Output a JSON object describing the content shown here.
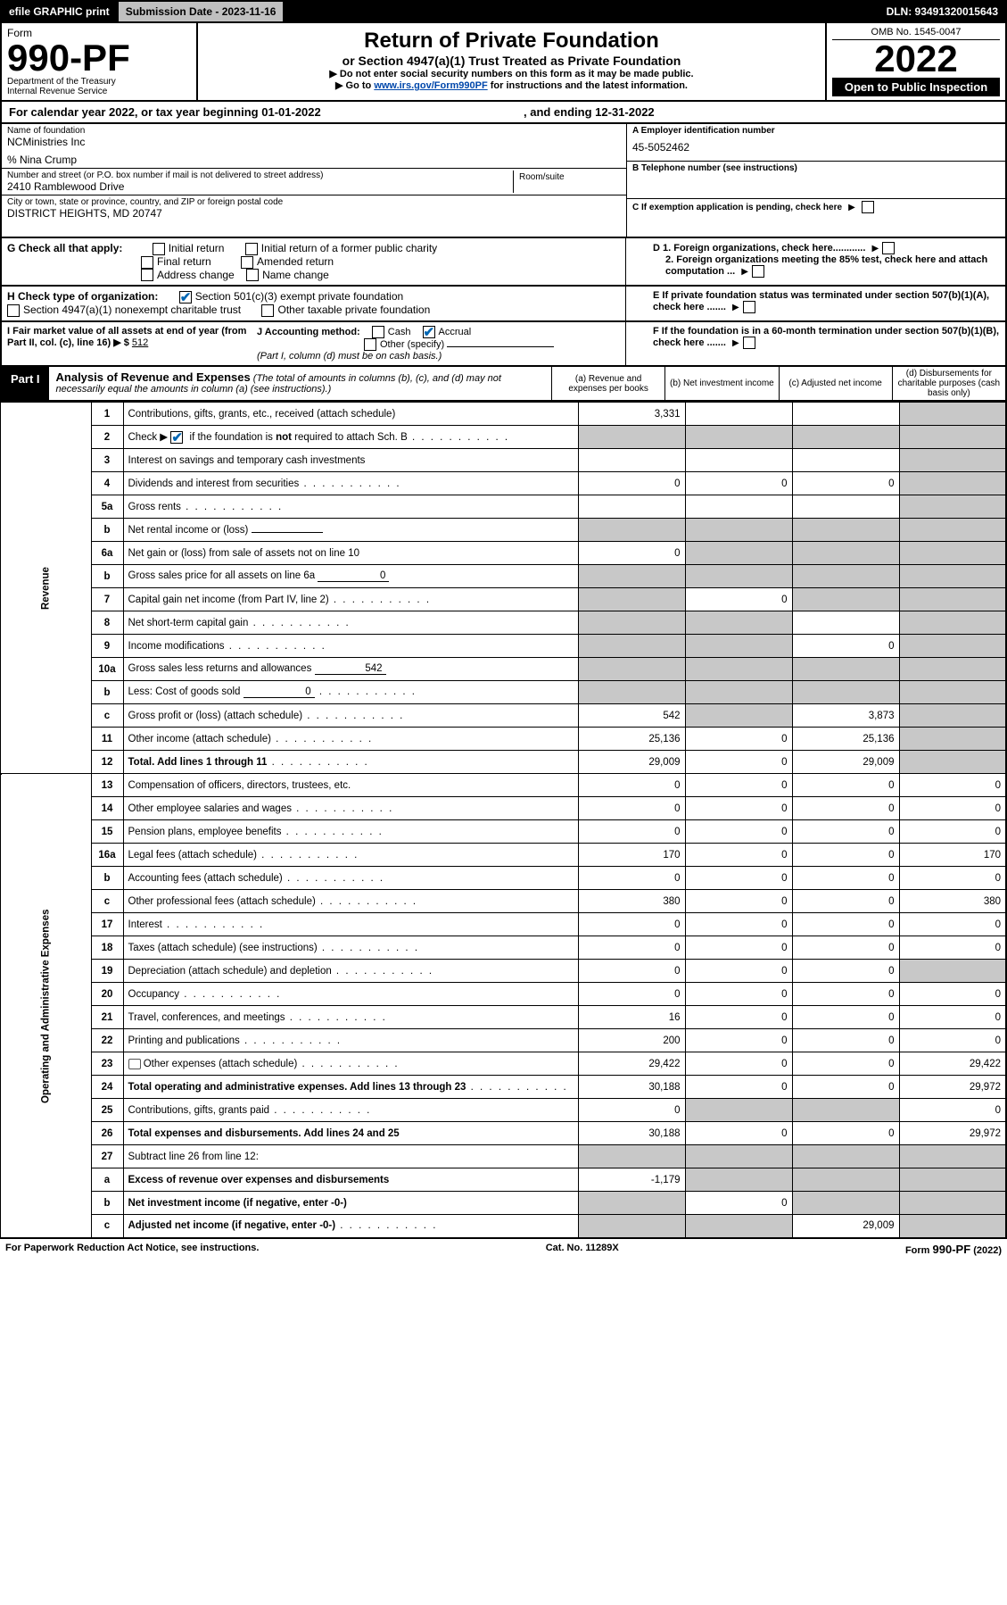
{
  "top_bar": {
    "efile": "efile GRAPHIC print",
    "submission": "Submission Date - 2023-11-16",
    "dln": "DLN: 93491320015643"
  },
  "header": {
    "form_word": "Form",
    "form_number": "990-PF",
    "dept": "Department of the Treasury\nInternal Revenue Service",
    "title_main": "Return of Private Foundation",
    "title_sub": "or Section 4947(a)(1) Trust Treated as Private Foundation",
    "instr1": "▶ Do not enter social security numbers on this form as it may be made public.",
    "instr2_prefix": "▶ Go to ",
    "instr2_link": "www.irs.gov/Form990PF",
    "instr2_suffix": " for instructions and the latest information.",
    "omb": "OMB No. 1545-0047",
    "year": "2022",
    "open": "Open to Public Inspection"
  },
  "calendar": {
    "text_prefix": "For calendar year 2022, or tax year beginning ",
    "begin": "01-01-2022",
    "mid": " , and ending ",
    "end": "12-31-2022"
  },
  "entity": {
    "name_label": "Name of foundation",
    "name": "NCMinistries Inc",
    "co_line": "% Nina Crump",
    "addr_label": "Number and street (or P.O. box number if mail is not delivered to street address)",
    "addr": "2410 Ramblewood Drive",
    "room_label": "Room/suite",
    "room": "",
    "city_label": "City or town, state or province, country, and ZIP or foreign postal code",
    "city": "DISTRICT HEIGHTS, MD  20747",
    "a_label": "A Employer identification number",
    "a_value": "45-5052462",
    "b_label": "B Telephone number (see instructions)",
    "b_value": "",
    "c_label": "C If exemption application is pending, check here"
  },
  "checks": {
    "g_label": "G Check all that apply:",
    "g_items": [
      "Initial return",
      "Initial return of a former public charity",
      "Final return",
      "Amended return",
      "Address change",
      "Name change"
    ],
    "h_label": "H Check type of organization:",
    "h_items": [
      "Section 501(c)(3) exempt private foundation",
      "Section 4947(a)(1) nonexempt charitable trust",
      "Other taxable private foundation"
    ],
    "h_checked": 0,
    "i_label": "I Fair market value of all assets at end of year (from Part II, col. (c), line 16) ▶ $",
    "i_value": "512",
    "j_label": "J Accounting method:",
    "j_items": [
      "Cash",
      "Accrual",
      "Other (specify)"
    ],
    "j_checked": 1,
    "j_note": "(Part I, column (d) must be on cash basis.)",
    "d_label": "D 1. Foreign organizations, check here............",
    "d2_label": "2. Foreign organizations meeting the 85% test, check here and attach computation ...",
    "e_label": "E If private foundation status was terminated under section 507(b)(1)(A), check here .......",
    "f_label": "F If the foundation is in a 60-month termination under section 507(b)(1)(B), check here ......."
  },
  "part1": {
    "label": "Part I",
    "title": "Analysis of Revenue and Expenses",
    "desc": " (The total of amounts in columns (b), (c), and (d) may not necessarily equal the amounts in column (a) (see instructions).)",
    "cols": [
      "(a) Revenue and expenses per books",
      "(b) Net investment income",
      "(c) Adjusted net income",
      "(d) Disbursements for charitable purposes (cash basis only)"
    ]
  },
  "sections": {
    "revenue": "Revenue",
    "expenses": "Operating and Administrative Expenses"
  },
  "rows": [
    {
      "n": "1",
      "desc": "Contributions, gifts, grants, etc., received (attach schedule)",
      "a": "3,331",
      "b": "",
      "c": "",
      "d": "",
      "grey": [
        "d"
      ]
    },
    {
      "n": "2",
      "desc": "Check ▶ ☑ if the foundation is not required to attach Sch. B",
      "a": "",
      "b": "",
      "c": "",
      "d": "",
      "grey": [
        "a",
        "b",
        "c",
        "d"
      ],
      "check": true,
      "dots": true
    },
    {
      "n": "3",
      "desc": "Interest on savings and temporary cash investments",
      "a": "",
      "b": "",
      "c": "",
      "d": "",
      "grey": [
        "d"
      ]
    },
    {
      "n": "4",
      "desc": "Dividends and interest from securities",
      "a": "0",
      "b": "0",
      "c": "0",
      "d": "",
      "grey": [
        "d"
      ],
      "dots": true
    },
    {
      "n": "5a",
      "desc": "Gross rents",
      "a": "",
      "b": "",
      "c": "",
      "d": "",
      "grey": [
        "d"
      ],
      "dots": true
    },
    {
      "n": "b",
      "desc": "Net rental income or (loss)",
      "a": "",
      "b": "",
      "c": "",
      "d": "",
      "grey": [
        "a",
        "b",
        "c",
        "d"
      ],
      "inline": ""
    },
    {
      "n": "6a",
      "desc": "Net gain or (loss) from sale of assets not on line 10",
      "a": "0",
      "b": "",
      "c": "",
      "d": "",
      "grey": [
        "b",
        "c",
        "d"
      ]
    },
    {
      "n": "b",
      "desc": "Gross sales price for all assets on line 6a",
      "a": "",
      "b": "",
      "c": "",
      "d": "",
      "grey": [
        "a",
        "b",
        "c",
        "d"
      ],
      "inline": "0"
    },
    {
      "n": "7",
      "desc": "Capital gain net income (from Part IV, line 2)",
      "a": "",
      "b": "0",
      "c": "",
      "d": "",
      "grey": [
        "a",
        "c",
        "d"
      ],
      "dots": true
    },
    {
      "n": "8",
      "desc": "Net short-term capital gain",
      "a": "",
      "b": "",
      "c": "",
      "d": "",
      "grey": [
        "a",
        "b",
        "d"
      ],
      "dots": true
    },
    {
      "n": "9",
      "desc": "Income modifications",
      "a": "",
      "b": "",
      "c": "0",
      "d": "",
      "grey": [
        "a",
        "b",
        "d"
      ],
      "dots": true
    },
    {
      "n": "10a",
      "desc": "Gross sales less returns and allowances",
      "a": "",
      "b": "",
      "c": "",
      "d": "",
      "grey": [
        "a",
        "b",
        "c",
        "d"
      ],
      "inline": "542"
    },
    {
      "n": "b",
      "desc": "Less: Cost of goods sold",
      "a": "",
      "b": "",
      "c": "",
      "d": "",
      "grey": [
        "a",
        "b",
        "c",
        "d"
      ],
      "inline": "0",
      "dots": true
    },
    {
      "n": "c",
      "desc": "Gross profit or (loss) (attach schedule)",
      "a": "542",
      "b": "",
      "c": "3,873",
      "d": "",
      "grey": [
        "b",
        "d"
      ],
      "dots": true
    },
    {
      "n": "11",
      "desc": "Other income (attach schedule)",
      "a": "25,136",
      "b": "0",
      "c": "25,136",
      "d": "",
      "grey": [
        "d"
      ],
      "dots": true
    },
    {
      "n": "12",
      "desc": "Total. Add lines 1 through 11",
      "a": "29,009",
      "b": "0",
      "c": "29,009",
      "d": "",
      "grey": [
        "d"
      ],
      "bold": true,
      "dots": true
    }
  ],
  "exp_rows": [
    {
      "n": "13",
      "desc": "Compensation of officers, directors, trustees, etc.",
      "a": "0",
      "b": "0",
      "c": "0",
      "d": "0"
    },
    {
      "n": "14",
      "desc": "Other employee salaries and wages",
      "a": "0",
      "b": "0",
      "c": "0",
      "d": "0",
      "dots": true
    },
    {
      "n": "15",
      "desc": "Pension plans, employee benefits",
      "a": "0",
      "b": "0",
      "c": "0",
      "d": "0",
      "dots": true
    },
    {
      "n": "16a",
      "desc": "Legal fees (attach schedule)",
      "a": "170",
      "b": "0",
      "c": "0",
      "d": "170",
      "dots": true
    },
    {
      "n": "b",
      "desc": "Accounting fees (attach schedule)",
      "a": "0",
      "b": "0",
      "c": "0",
      "d": "0",
      "dots": true
    },
    {
      "n": "c",
      "desc": "Other professional fees (attach schedule)",
      "a": "380",
      "b": "0",
      "c": "0",
      "d": "380",
      "dots": true
    },
    {
      "n": "17",
      "desc": "Interest",
      "a": "0",
      "b": "0",
      "c": "0",
      "d": "0",
      "dots": true
    },
    {
      "n": "18",
      "desc": "Taxes (attach schedule) (see instructions)",
      "a": "0",
      "b": "0",
      "c": "0",
      "d": "0",
      "dots": true
    },
    {
      "n": "19",
      "desc": "Depreciation (attach schedule) and depletion",
      "a": "0",
      "b": "0",
      "c": "0",
      "d": "",
      "grey": [
        "d"
      ],
      "dots": true
    },
    {
      "n": "20",
      "desc": "Occupancy",
      "a": "0",
      "b": "0",
      "c": "0",
      "d": "0",
      "dots": true
    },
    {
      "n": "21",
      "desc": "Travel, conferences, and meetings",
      "a": "16",
      "b": "0",
      "c": "0",
      "d": "0",
      "dots": true
    },
    {
      "n": "22",
      "desc": "Printing and publications",
      "a": "200",
      "b": "0",
      "c": "0",
      "d": "0",
      "dots": true
    },
    {
      "n": "23",
      "desc": "Other expenses (attach schedule)",
      "a": "29,422",
      "b": "0",
      "c": "0",
      "d": "29,422",
      "icon": true,
      "dots": true
    },
    {
      "n": "24",
      "desc": "Total operating and administrative expenses. Add lines 13 through 23",
      "a": "30,188",
      "b": "0",
      "c": "0",
      "d": "29,972",
      "bold": true,
      "dots": true
    },
    {
      "n": "25",
      "desc": "Contributions, gifts, grants paid",
      "a": "0",
      "b": "",
      "c": "",
      "d": "0",
      "grey": [
        "b",
        "c"
      ],
      "dots": true
    },
    {
      "n": "26",
      "desc": "Total expenses and disbursements. Add lines 24 and 25",
      "a": "30,188",
      "b": "0",
      "c": "0",
      "d": "29,972",
      "bold": true
    },
    {
      "n": "27",
      "desc": "Subtract line 26 from line 12:",
      "a": "",
      "b": "",
      "c": "",
      "d": "",
      "grey": [
        "a",
        "b",
        "c",
        "d"
      ]
    },
    {
      "n": "a",
      "desc": "Excess of revenue over expenses and disbursements",
      "a": "-1,179",
      "b": "",
      "c": "",
      "d": "",
      "grey": [
        "b",
        "c",
        "d"
      ],
      "bold": true
    },
    {
      "n": "b",
      "desc": "Net investment income (if negative, enter -0-)",
      "a": "",
      "b": "0",
      "c": "",
      "d": "",
      "grey": [
        "a",
        "c",
        "d"
      ],
      "bold": true
    },
    {
      "n": "c",
      "desc": "Adjusted net income (if negative, enter -0-)",
      "a": "",
      "b": "",
      "c": "29,009",
      "d": "",
      "grey": [
        "a",
        "b",
        "d"
      ],
      "bold": true,
      "dots": true
    }
  ],
  "footer": {
    "left": "For Paperwork Reduction Act Notice, see instructions.",
    "mid": "Cat. No. 11289X",
    "right": "Form 990-PF (2022)"
  },
  "colors": {
    "black": "#000000",
    "grey": "#c8c8c8",
    "link": "#0047ab",
    "check": "#0066b3"
  }
}
